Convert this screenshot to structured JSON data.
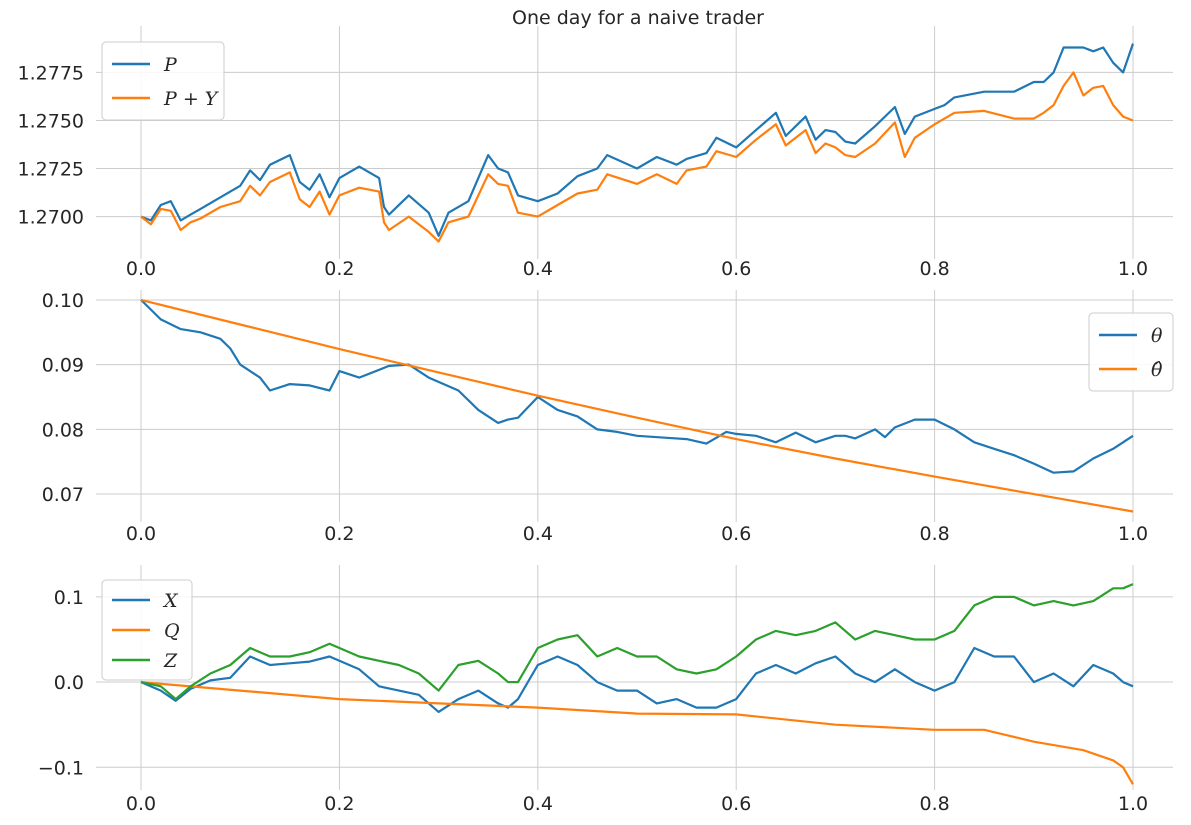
{
  "figure_title": "One day for a naive trader",
  "colors": {
    "blue": "#1f77b4",
    "orange": "#ff7f0e",
    "green": "#2ca02c",
    "grid": "#cccccc"
  },
  "chart_data": [
    {
      "type": "line",
      "title": "One day for a naive trader",
      "xlim": [
        0,
        1
      ],
      "ylim": [
        1.268,
        1.2795
      ],
      "xticks": [
        0.0,
        0.2,
        0.4,
        0.6,
        0.8,
        1.0
      ],
      "xtick_labels": [
        "0.0",
        "0.2",
        "0.4",
        "0.6",
        "0.8",
        "1.0"
      ],
      "yticks": [
        1.27,
        1.2725,
        1.275,
        1.2775
      ],
      "ytick_labels": [
        "1.2700",
        "1.2725",
        "1.2750",
        "1.2775"
      ],
      "grid": true,
      "legend": "upper left",
      "series": [
        {
          "name": "P",
          "legend_label": "P",
          "color": "#1f77b4",
          "x": [
            0.0,
            0.01,
            0.02,
            0.03,
            0.04,
            0.05,
            0.06,
            0.08,
            0.1,
            0.11,
            0.12,
            0.13,
            0.15,
            0.16,
            0.17,
            0.18,
            0.19,
            0.2,
            0.22,
            0.24,
            0.245,
            0.25,
            0.27,
            0.29,
            0.3,
            0.31,
            0.33,
            0.35,
            0.36,
            0.37,
            0.38,
            0.4,
            0.42,
            0.44,
            0.46,
            0.47,
            0.5,
            0.52,
            0.54,
            0.55,
            0.57,
            0.58,
            0.6,
            0.62,
            0.64,
            0.65,
            0.66,
            0.67,
            0.68,
            0.69,
            0.7,
            0.71,
            0.72,
            0.74,
            0.76,
            0.77,
            0.78,
            0.8,
            0.81,
            0.82,
            0.85,
            0.88,
            0.9,
            0.91,
            0.92,
            0.93,
            0.94,
            0.95,
            0.96,
            0.97,
            0.98,
            0.99,
            1.0
          ],
          "y": [
            1.27,
            1.2698,
            1.2706,
            1.2708,
            1.2698,
            1.2701,
            1.2704,
            1.271,
            1.2716,
            1.2724,
            1.2719,
            1.2727,
            1.2732,
            1.2718,
            1.2714,
            1.2722,
            1.271,
            1.272,
            1.2726,
            1.272,
            1.2705,
            1.2701,
            1.2711,
            1.2702,
            1.269,
            1.2702,
            1.2708,
            1.2732,
            1.2725,
            1.2723,
            1.2711,
            1.2708,
            1.2712,
            1.2721,
            1.2725,
            1.2732,
            1.2725,
            1.2731,
            1.2727,
            1.273,
            1.2733,
            1.2741,
            1.2736,
            1.2745,
            1.2754,
            1.2742,
            1.2747,
            1.2752,
            1.274,
            1.2745,
            1.2744,
            1.2739,
            1.2738,
            1.2747,
            1.2757,
            1.2743,
            1.2752,
            1.2756,
            1.2758,
            1.2762,
            1.2765,
            1.2765,
            1.277,
            1.277,
            1.2775,
            1.2788,
            1.2788,
            1.2788,
            1.2786,
            1.2788,
            1.278,
            1.2775,
            1.279
          ]
        },
        {
          "name": "P + Y",
          "legend_label": "P + Y",
          "color": "#ff7f0e",
          "x": [
            0.0,
            0.01,
            0.02,
            0.03,
            0.04,
            0.05,
            0.06,
            0.08,
            0.1,
            0.11,
            0.12,
            0.13,
            0.15,
            0.16,
            0.17,
            0.18,
            0.19,
            0.2,
            0.22,
            0.24,
            0.245,
            0.25,
            0.27,
            0.29,
            0.3,
            0.31,
            0.33,
            0.35,
            0.36,
            0.37,
            0.38,
            0.4,
            0.42,
            0.44,
            0.46,
            0.47,
            0.5,
            0.52,
            0.54,
            0.55,
            0.57,
            0.58,
            0.6,
            0.62,
            0.64,
            0.65,
            0.66,
            0.67,
            0.68,
            0.69,
            0.7,
            0.71,
            0.72,
            0.74,
            0.76,
            0.77,
            0.78,
            0.8,
            0.81,
            0.82,
            0.85,
            0.88,
            0.9,
            0.91,
            0.92,
            0.93,
            0.94,
            0.95,
            0.96,
            0.97,
            0.98,
            0.99,
            1.0
          ],
          "y": [
            1.27,
            1.2696,
            1.2704,
            1.2703,
            1.2693,
            1.2697,
            1.2699,
            1.2705,
            1.2708,
            1.2716,
            1.2711,
            1.2718,
            1.2723,
            1.2709,
            1.2705,
            1.2713,
            1.2701,
            1.2711,
            1.2715,
            1.2713,
            1.2697,
            1.2693,
            1.27,
            1.2692,
            1.2687,
            1.2697,
            1.27,
            1.2722,
            1.2717,
            1.2716,
            1.2702,
            1.27,
            1.2706,
            1.2712,
            1.2714,
            1.2722,
            1.2717,
            1.2722,
            1.2717,
            1.2724,
            1.2726,
            1.2734,
            1.2731,
            1.274,
            1.2748,
            1.2737,
            1.2741,
            1.2745,
            1.2733,
            1.2738,
            1.2736,
            1.2732,
            1.2731,
            1.2738,
            1.2749,
            1.2731,
            1.2741,
            1.2748,
            1.2751,
            1.2754,
            1.2755,
            1.2751,
            1.2751,
            1.2754,
            1.2758,
            1.2768,
            1.2775,
            1.2763,
            1.2767,
            1.2768,
            1.2758,
            1.2752,
            1.275
          ]
        }
      ]
    },
    {
      "type": "line",
      "xlim": [
        0,
        1
      ],
      "ylim": [
        0.0663,
        0.1003
      ],
      "xticks": [
        0.0,
        0.2,
        0.4,
        0.6,
        0.8,
        1.0
      ],
      "xtick_labels": [
        "0.0",
        "0.2",
        "0.4",
        "0.6",
        "0.8",
        "1.0"
      ],
      "yticks": [
        0.07,
        0.08,
        0.09,
        0.1
      ],
      "ytick_labels": [
        "0.07",
        "0.08",
        "0.09",
        "0.10"
      ],
      "grid": true,
      "legend": "upper right",
      "series": [
        {
          "name": "θ",
          "legend_label": "θ",
          "color": "#1f77b4",
          "x": [
            0.0,
            0.02,
            0.04,
            0.06,
            0.08,
            0.09,
            0.1,
            0.12,
            0.13,
            0.15,
            0.17,
            0.19,
            0.2,
            0.22,
            0.25,
            0.27,
            0.29,
            0.32,
            0.34,
            0.36,
            0.37,
            0.38,
            0.4,
            0.42,
            0.44,
            0.46,
            0.48,
            0.5,
            0.53,
            0.55,
            0.57,
            0.59,
            0.6,
            0.62,
            0.64,
            0.66,
            0.68,
            0.7,
            0.71,
            0.72,
            0.74,
            0.75,
            0.76,
            0.78,
            0.8,
            0.82,
            0.84,
            0.86,
            0.88,
            0.9,
            0.92,
            0.94,
            0.96,
            0.98,
            1.0
          ],
          "y": [
            0.1,
            0.097,
            0.0955,
            0.095,
            0.094,
            0.0925,
            0.09,
            0.088,
            0.086,
            0.087,
            0.0868,
            0.086,
            0.089,
            0.088,
            0.0898,
            0.09,
            0.088,
            0.086,
            0.083,
            0.081,
            0.0815,
            0.0818,
            0.085,
            0.083,
            0.082,
            0.08,
            0.0796,
            0.079,
            0.0787,
            0.0785,
            0.0778,
            0.0796,
            0.0793,
            0.079,
            0.078,
            0.0795,
            0.078,
            0.079,
            0.079,
            0.0786,
            0.08,
            0.0788,
            0.0803,
            0.0815,
            0.0815,
            0.08,
            0.078,
            0.077,
            0.076,
            0.0747,
            0.0733,
            0.0735,
            0.0755,
            0.077,
            0.079
          ]
        },
        {
          "name": "θ̂",
          "legend_label": "θ̂",
          "color": "#ff7f0e",
          "x": [
            0.0,
            0.1,
            0.2,
            0.3,
            0.4,
            0.5,
            0.6,
            0.7,
            0.8,
            0.9,
            1.0
          ],
          "y": [
            0.1,
            0.0962,
            0.0924,
            0.0888,
            0.0852,
            0.0818,
            0.0785,
            0.0755,
            0.0727,
            0.07,
            0.0673
          ]
        }
      ]
    },
    {
      "type": "line",
      "xlim": [
        0,
        1
      ],
      "ylim": [
        -0.122,
        0.128
      ],
      "xticks": [
        0.0,
        0.2,
        0.4,
        0.6,
        0.8,
        1.0
      ],
      "xtick_labels": [
        "0.0",
        "0.2",
        "0.4",
        "0.6",
        "0.8",
        "1.0"
      ],
      "yticks": [
        -0.1,
        0.0,
        0.1
      ],
      "ytick_labels": [
        "−0.1",
        "0.0",
        "0.1"
      ],
      "grid": true,
      "legend": "upper left",
      "series": [
        {
          "name": "X",
          "legend_label": "X",
          "color": "#1f77b4",
          "x": [
            0.0,
            0.02,
            0.035,
            0.05,
            0.07,
            0.09,
            0.11,
            0.13,
            0.15,
            0.17,
            0.19,
            0.2,
            0.22,
            0.24,
            0.26,
            0.28,
            0.3,
            0.32,
            0.34,
            0.36,
            0.37,
            0.38,
            0.4,
            0.42,
            0.44,
            0.46,
            0.48,
            0.5,
            0.52,
            0.54,
            0.56,
            0.58,
            0.6,
            0.62,
            0.64,
            0.66,
            0.68,
            0.7,
            0.72,
            0.74,
            0.76,
            0.78,
            0.8,
            0.82,
            0.84,
            0.86,
            0.88,
            0.9,
            0.92,
            0.94,
            0.96,
            0.98,
            0.99,
            1.0
          ],
          "y": [
            0.0,
            -0.01,
            -0.022,
            -0.008,
            0.002,
            0.005,
            0.03,
            0.02,
            0.022,
            0.024,
            0.03,
            0.025,
            0.015,
            -0.005,
            -0.01,
            -0.015,
            -0.035,
            -0.02,
            -0.01,
            -0.025,
            -0.03,
            -0.02,
            0.02,
            0.03,
            0.02,
            0.0,
            -0.01,
            -0.01,
            -0.025,
            -0.02,
            -0.03,
            -0.03,
            -0.02,
            0.01,
            0.02,
            0.01,
            0.022,
            0.03,
            0.01,
            0.0,
            0.015,
            0.0,
            -0.01,
            0.0,
            0.04,
            0.03,
            0.03,
            0.0,
            0.01,
            -0.005,
            0.02,
            0.01,
            0.0,
            -0.005
          ]
        },
        {
          "name": "Q",
          "legend_label": "Q",
          "color": "#ff7f0e",
          "x": [
            0.0,
            0.1,
            0.2,
            0.3,
            0.4,
            0.5,
            0.6,
            0.7,
            0.8,
            0.85,
            0.9,
            0.95,
            0.98,
            0.99,
            1.0
          ],
          "y": [
            0.0,
            -0.01,
            -0.02,
            -0.025,
            -0.03,
            -0.037,
            -0.038,
            -0.05,
            -0.056,
            -0.056,
            -0.07,
            -0.08,
            -0.092,
            -0.1,
            -0.12
          ]
        },
        {
          "name": "Z",
          "legend_label": "Z",
          "color": "#2ca02c",
          "x": [
            0.0,
            0.02,
            0.035,
            0.05,
            0.07,
            0.09,
            0.11,
            0.13,
            0.15,
            0.17,
            0.19,
            0.2,
            0.22,
            0.24,
            0.26,
            0.28,
            0.3,
            0.32,
            0.34,
            0.36,
            0.37,
            0.38,
            0.4,
            0.42,
            0.44,
            0.46,
            0.48,
            0.5,
            0.52,
            0.54,
            0.56,
            0.58,
            0.6,
            0.62,
            0.64,
            0.66,
            0.68,
            0.7,
            0.72,
            0.74,
            0.76,
            0.78,
            0.8,
            0.82,
            0.84,
            0.86,
            0.88,
            0.9,
            0.92,
            0.94,
            0.96,
            0.98,
            0.99,
            1.0
          ],
          "y": [
            0.0,
            -0.005,
            -0.02,
            -0.005,
            0.01,
            0.02,
            0.04,
            0.03,
            0.03,
            0.035,
            0.045,
            0.04,
            0.03,
            0.025,
            0.02,
            0.01,
            -0.01,
            0.02,
            0.025,
            0.01,
            0.0,
            0.0,
            0.04,
            0.05,
            0.055,
            0.03,
            0.04,
            0.03,
            0.03,
            0.015,
            0.01,
            0.015,
            0.03,
            0.05,
            0.06,
            0.055,
            0.06,
            0.07,
            0.05,
            0.06,
            0.055,
            0.05,
            0.05,
            0.06,
            0.09,
            0.1,
            0.1,
            0.09,
            0.095,
            0.09,
            0.095,
            0.11,
            0.11,
            0.115
          ]
        }
      ]
    }
  ]
}
